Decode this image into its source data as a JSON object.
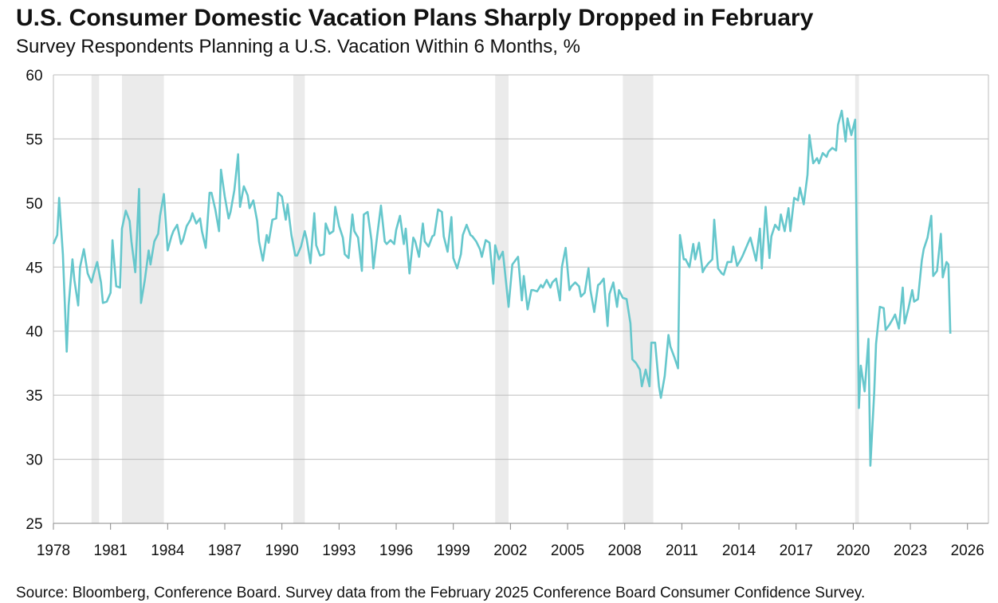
{
  "chart_data": {
    "type": "line",
    "title": "U.S. Consumer Domestic Vacation Plans Sharply Dropped in February",
    "subtitle": "Survey Respondents Planning a U.S. Vacation Within 6 Months, %",
    "source": "Source: Bloomberg, Conference Board. Survey data from the February 2025 Conference Board Consumer Confidence Survey.",
    "xlim": [
      1978,
      2027.1
    ],
    "ylim": [
      25,
      60
    ],
    "xticks": [
      1978,
      1981,
      1984,
      1987,
      1990,
      1993,
      1996,
      1999,
      2002,
      2005,
      2008,
      2011,
      2014,
      2017,
      2020,
      2023,
      2026
    ],
    "yticks": [
      25,
      30,
      35,
      40,
      45,
      50,
      55,
      60
    ],
    "grid": true,
    "recession_color": "#ebebeb",
    "recessions": [
      [
        1980.0,
        1980.4
      ],
      [
        1981.6,
        1983.8
      ],
      [
        1990.6,
        1991.2
      ],
      [
        2001.2,
        2001.9
      ],
      [
        2007.9,
        2009.5
      ],
      [
        2020.1,
        2020.3
      ]
    ],
    "series": [
      {
        "name": "Planning a U.S. vacation",
        "color": "#66c7cc",
        "x": [
          1978.0,
          1978.2,
          1978.3,
          1978.5,
          1978.7,
          1978.8,
          1979.0,
          1979.1,
          1979.3,
          1979.4,
          1979.6,
          1979.8,
          1980.0,
          1980.1,
          1980.3,
          1980.5,
          1980.6,
          1980.8,
          1981.0,
          1981.1,
          1981.3,
          1981.5,
          1981.6,
          1981.8,
          1982.0,
          1982.1,
          1982.3,
          1982.5,
          1982.6,
          1982.8,
          1983.0,
          1983.1,
          1983.3,
          1983.5,
          1983.6,
          1983.8,
          1984.0,
          1984.2,
          1984.3,
          1984.5,
          1984.7,
          1984.8,
          1985.0,
          1985.2,
          1985.3,
          1985.5,
          1985.7,
          1985.8,
          1986.0,
          1986.2,
          1986.3,
          1986.5,
          1986.7,
          1986.8,
          1987.0,
          1987.2,
          1987.3,
          1987.5,
          1987.7,
          1987.8,
          1988.0,
          1988.2,
          1988.3,
          1988.5,
          1988.7,
          1988.8,
          1989.0,
          1989.2,
          1989.3,
          1989.5,
          1989.7,
          1989.8,
          1990.0,
          1990.2,
          1990.3,
          1990.5,
          1990.7,
          1990.8,
          1991.0,
          1991.2,
          1991.3,
          1991.5,
          1991.7,
          1991.8,
          1992.0,
          1992.2,
          1992.3,
          1992.5,
          1992.7,
          1992.8,
          1993.0,
          1993.2,
          1993.3,
          1993.5,
          1993.7,
          1993.8,
          1994.0,
          1994.2,
          1994.3,
          1994.5,
          1994.7,
          1994.8,
          1995.0,
          1995.2,
          1995.4,
          1995.5,
          1995.7,
          1995.9,
          1996.0,
          1996.2,
          1996.4,
          1996.5,
          1996.7,
          1996.9,
          1997.0,
          1997.2,
          1997.4,
          1997.5,
          1997.7,
          1997.9,
          1998.0,
          1998.2,
          1998.4,
          1998.5,
          1998.7,
          1998.9,
          1999.0,
          1999.2,
          1999.4,
          1999.5,
          1999.7,
          1999.9,
          2000.0,
          2000.2,
          2000.4,
          2000.5,
          2000.7,
          2000.9,
          2001.1,
          2001.2,
          2001.4,
          2001.6,
          2001.7,
          2001.9,
          2002.1,
          2002.2,
          2002.4,
          2002.6,
          2002.7,
          2002.9,
          2003.1,
          2003.2,
          2003.4,
          2003.6,
          2003.7,
          2003.9,
          2004.1,
          2004.2,
          2004.4,
          2004.6,
          2004.7,
          2004.9,
          2005.1,
          2005.2,
          2005.4,
          2005.6,
          2005.7,
          2005.9,
          2006.1,
          2006.2,
          2006.4,
          2006.6,
          2006.7,
          2006.9,
          2007.1,
          2007.2,
          2007.4,
          2007.6,
          2007.7,
          2007.9,
          2008.1,
          2008.3,
          2008.4,
          2008.6,
          2008.8,
          2008.9,
          2009.1,
          2009.3,
          2009.4,
          2009.6,
          2009.8,
          2009.9,
          2010.1,
          2010.3,
          2010.4,
          2010.6,
          2010.8,
          2010.9,
          2011.1,
          2011.2,
          2011.4,
          2011.6,
          2011.7,
          2011.9,
          2012.1,
          2012.2,
          2012.4,
          2012.6,
          2012.7,
          2012.9,
          2013.1,
          2013.2,
          2013.4,
          2013.6,
          2013.7,
          2013.9,
          2014.1,
          2014.2,
          2014.4,
          2014.6,
          2014.7,
          2014.9,
          2015.1,
          2015.2,
          2015.4,
          2015.6,
          2015.7,
          2015.9,
          2016.1,
          2016.2,
          2016.4,
          2016.6,
          2016.7,
          2016.9,
          2017.1,
          2017.2,
          2017.4,
          2017.6,
          2017.7,
          2017.9,
          2018.1,
          2018.2,
          2018.4,
          2018.6,
          2018.7,
          2018.9,
          2019.1,
          2019.2,
          2019.4,
          2019.6,
          2019.7,
          2019.9,
          2020.1,
          2020.3,
          2020.4,
          2020.6,
          2020.8,
          2020.9,
          2021.1,
          2021.2,
          2021.4,
          2021.6,
          2021.7,
          2021.9,
          2022.1,
          2022.2,
          2022.4,
          2022.6,
          2022.7,
          2022.9,
          2023.1,
          2023.2,
          2023.4,
          2023.6,
          2023.7,
          2023.9,
          2024.1,
          2024.2,
          2024.4,
          2024.6,
          2024.7,
          2024.9,
          2025.0,
          2025.1
        ],
        "values": [
          46.8,
          47.5,
          50.4,
          46,
          38.4,
          42,
          45.6,
          44,
          42,
          45,
          46.4,
          44.5,
          43.8,
          44.4,
          45.4,
          43.8,
          42.2,
          42.3,
          43,
          47.1,
          43.5,
          43.4,
          48,
          49.4,
          48.6,
          47,
          44.6,
          51.1,
          42.2,
          44,
          46.3,
          45.2,
          47,
          47.6,
          49,
          50.7,
          46.3,
          47.4,
          47.8,
          48.3,
          46.8,
          47.1,
          48.2,
          48.7,
          49.2,
          48.4,
          48.8,
          47.8,
          46.5,
          50.8,
          50.8,
          49.5,
          47.8,
          52.6,
          50.5,
          48.8,
          49.3,
          51,
          53.8,
          49.7,
          51.3,
          50.6,
          49.6,
          50.2,
          48.6,
          47,
          45.5,
          47.5,
          46.9,
          48.7,
          48.8,
          50.8,
          50.5,
          48.7,
          49.9,
          47.5,
          45.9,
          45.9,
          46.6,
          47.8,
          47.2,
          45.3,
          49.2,
          46.7,
          45.9,
          46,
          48.4,
          47.6,
          47.8,
          49.7,
          48.2,
          47.3,
          46,
          45.7,
          49.1,
          47.8,
          47.3,
          44.7,
          49.1,
          49.3,
          47.1,
          44.9,
          47.4,
          49.8,
          47,
          46.8,
          47.1,
          46.8,
          47.9,
          49,
          46.8,
          48,
          44.5,
          47.3,
          47,
          45.8,
          48.4,
          47,
          46.6,
          47.4,
          47.5,
          49.5,
          49.3,
          47.4,
          46.2,
          48.9,
          45.7,
          44.9,
          46,
          47.5,
          48.3,
          47.5,
          47.4,
          47,
          46.4,
          45.8,
          47.1,
          46.9,
          43.7,
          46.7,
          45.6,
          46.2,
          44.8,
          41.9,
          45.2,
          45.4,
          45.8,
          42.4,
          44.3,
          41.7,
          43.2,
          43.2,
          43.1,
          43.6,
          43.4,
          44,
          43.4,
          43.8,
          44.1,
          42.4,
          45,
          46.5,
          43.2,
          43.5,
          43.8,
          43.5,
          42.7,
          43,
          44.9,
          43.2,
          41.5,
          43.6,
          43.7,
          44.1,
          40.4,
          42.9,
          43.8,
          41.9,
          43.2,
          42.6,
          42.5,
          40.6,
          37.8,
          37.5,
          37,
          35.7,
          37,
          35.7,
          39.1,
          39.1,
          35.7,
          34.8,
          36.5,
          39.7,
          38.8,
          38,
          37.1,
          47.5,
          45.6,
          45.6,
          45,
          46.8,
          45.6,
          46.9,
          44.6,
          44.9,
          45.3,
          45.6,
          48.7,
          44.9,
          44.5,
          44.4,
          45.4,
          45.4,
          46.6,
          45.1,
          45.6,
          45.9,
          46.6,
          47.3,
          46.7,
          45.5,
          48,
          44.9,
          49.7,
          45.7,
          47.4,
          48.3,
          47.9,
          49.1,
          47.8,
          49.6,
          47.8,
          50.4,
          50.2,
          51.2,
          49.9,
          52.2,
          55.3,
          53.1,
          53.5,
          53.1,
          53.9,
          53.6,
          54,
          54.3,
          54.1,
          56.1,
          57.2,
          54.8,
          56.6,
          55.3,
          56.5,
          34,
          37.3,
          35.3,
          39.4,
          29.5,
          35.2,
          39,
          41.9,
          41.8,
          40.1,
          40.5,
          41,
          41.3,
          40.2,
          43.4,
          40.6,
          41.8,
          43.2,
          42.3,
          42.5,
          45.5,
          46.4,
          47.3,
          49,
          44.3,
          44.7,
          47.6,
          44.2,
          45.4,
          45.2,
          39.8
        ]
      }
    ]
  }
}
